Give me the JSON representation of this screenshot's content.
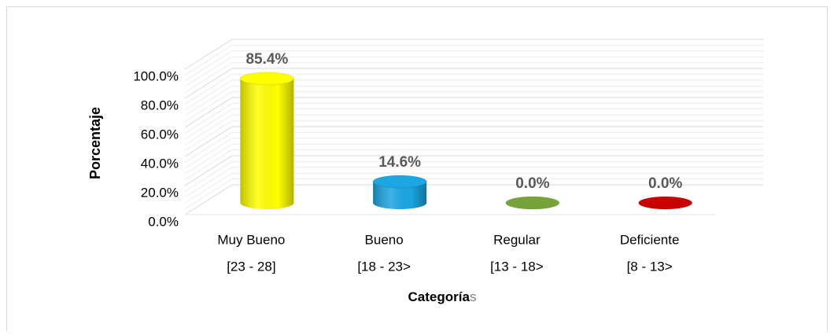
{
  "chart_data": {
    "type": "bar3d",
    "y_label": "Porcentaje",
    "x_label": [
      "Categoría",
      "s"
    ],
    "categories": [
      [
        "Muy Bueno",
        "[23 - 28]"
      ],
      [
        "Bueno",
        "[18 - 23>"
      ],
      [
        "Regular",
        "[13 - 18>"
      ],
      [
        "Deficiente",
        "[8 - 13>"
      ]
    ],
    "values": [
      85.4,
      14.6,
      0,
      0
    ],
    "value_labels": [
      "85.4%",
      "14.6%",
      "0.0%",
      "0.0%"
    ],
    "colors": [
      "#ffff00",
      "#1ca6e2",
      "#77a33a",
      "#c80000"
    ],
    "ylim": [
      0,
      100
    ],
    "yticks": [
      {
        "value": 0,
        "label": "0.0%"
      },
      {
        "value": 20,
        "label": "20.0%"
      },
      {
        "value": 40,
        "label": "40.0%"
      },
      {
        "value": 60,
        "label": "60.0%"
      },
      {
        "value": 80,
        "label": "80.0%"
      },
      {
        "value": 100,
        "label": "100.0%"
      }
    ],
    "grid": true
  }
}
